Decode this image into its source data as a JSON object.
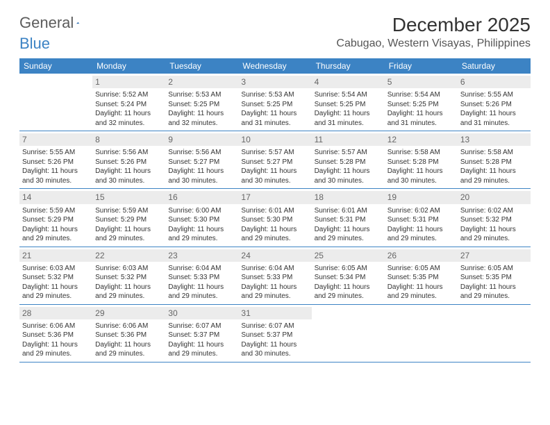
{
  "brand": {
    "text1": "General",
    "text2": "Blue"
  },
  "header": {
    "title": "December 2025",
    "location": "Cabugao, Western Visayas, Philippines"
  },
  "style": {
    "accent": "#3c83c4",
    "daynum_bg": "#ececec",
    "text_color": "#333333"
  },
  "weekdays": [
    "Sunday",
    "Monday",
    "Tuesday",
    "Wednesday",
    "Thursday",
    "Friday",
    "Saturday"
  ],
  "weeks": [
    [
      {
        "n": "",
        "empty": true
      },
      {
        "n": "1",
        "sunrise": "Sunrise: 5:52 AM",
        "sunset": "Sunset: 5:24 PM",
        "d1": "Daylight: 11 hours",
        "d2": "and 32 minutes."
      },
      {
        "n": "2",
        "sunrise": "Sunrise: 5:53 AM",
        "sunset": "Sunset: 5:25 PM",
        "d1": "Daylight: 11 hours",
        "d2": "and 32 minutes."
      },
      {
        "n": "3",
        "sunrise": "Sunrise: 5:53 AM",
        "sunset": "Sunset: 5:25 PM",
        "d1": "Daylight: 11 hours",
        "d2": "and 31 minutes."
      },
      {
        "n": "4",
        "sunrise": "Sunrise: 5:54 AM",
        "sunset": "Sunset: 5:25 PM",
        "d1": "Daylight: 11 hours",
        "d2": "and 31 minutes."
      },
      {
        "n": "5",
        "sunrise": "Sunrise: 5:54 AM",
        "sunset": "Sunset: 5:25 PM",
        "d1": "Daylight: 11 hours",
        "d2": "and 31 minutes."
      },
      {
        "n": "6",
        "sunrise": "Sunrise: 5:55 AM",
        "sunset": "Sunset: 5:26 PM",
        "d1": "Daylight: 11 hours",
        "d2": "and 31 minutes."
      }
    ],
    [
      {
        "n": "7",
        "sunrise": "Sunrise: 5:55 AM",
        "sunset": "Sunset: 5:26 PM",
        "d1": "Daylight: 11 hours",
        "d2": "and 30 minutes."
      },
      {
        "n": "8",
        "sunrise": "Sunrise: 5:56 AM",
        "sunset": "Sunset: 5:26 PM",
        "d1": "Daylight: 11 hours",
        "d2": "and 30 minutes."
      },
      {
        "n": "9",
        "sunrise": "Sunrise: 5:56 AM",
        "sunset": "Sunset: 5:27 PM",
        "d1": "Daylight: 11 hours",
        "d2": "and 30 minutes."
      },
      {
        "n": "10",
        "sunrise": "Sunrise: 5:57 AM",
        "sunset": "Sunset: 5:27 PM",
        "d1": "Daylight: 11 hours",
        "d2": "and 30 minutes."
      },
      {
        "n": "11",
        "sunrise": "Sunrise: 5:57 AM",
        "sunset": "Sunset: 5:28 PM",
        "d1": "Daylight: 11 hours",
        "d2": "and 30 minutes."
      },
      {
        "n": "12",
        "sunrise": "Sunrise: 5:58 AM",
        "sunset": "Sunset: 5:28 PM",
        "d1": "Daylight: 11 hours",
        "d2": "and 30 minutes."
      },
      {
        "n": "13",
        "sunrise": "Sunrise: 5:58 AM",
        "sunset": "Sunset: 5:28 PM",
        "d1": "Daylight: 11 hours",
        "d2": "and 29 minutes."
      }
    ],
    [
      {
        "n": "14",
        "sunrise": "Sunrise: 5:59 AM",
        "sunset": "Sunset: 5:29 PM",
        "d1": "Daylight: 11 hours",
        "d2": "and 29 minutes."
      },
      {
        "n": "15",
        "sunrise": "Sunrise: 5:59 AM",
        "sunset": "Sunset: 5:29 PM",
        "d1": "Daylight: 11 hours",
        "d2": "and 29 minutes."
      },
      {
        "n": "16",
        "sunrise": "Sunrise: 6:00 AM",
        "sunset": "Sunset: 5:30 PM",
        "d1": "Daylight: 11 hours",
        "d2": "and 29 minutes."
      },
      {
        "n": "17",
        "sunrise": "Sunrise: 6:01 AM",
        "sunset": "Sunset: 5:30 PM",
        "d1": "Daylight: 11 hours",
        "d2": "and 29 minutes."
      },
      {
        "n": "18",
        "sunrise": "Sunrise: 6:01 AM",
        "sunset": "Sunset: 5:31 PM",
        "d1": "Daylight: 11 hours",
        "d2": "and 29 minutes."
      },
      {
        "n": "19",
        "sunrise": "Sunrise: 6:02 AM",
        "sunset": "Sunset: 5:31 PM",
        "d1": "Daylight: 11 hours",
        "d2": "and 29 minutes."
      },
      {
        "n": "20",
        "sunrise": "Sunrise: 6:02 AM",
        "sunset": "Sunset: 5:32 PM",
        "d1": "Daylight: 11 hours",
        "d2": "and 29 minutes."
      }
    ],
    [
      {
        "n": "21",
        "sunrise": "Sunrise: 6:03 AM",
        "sunset": "Sunset: 5:32 PM",
        "d1": "Daylight: 11 hours",
        "d2": "and 29 minutes."
      },
      {
        "n": "22",
        "sunrise": "Sunrise: 6:03 AM",
        "sunset": "Sunset: 5:32 PM",
        "d1": "Daylight: 11 hours",
        "d2": "and 29 minutes."
      },
      {
        "n": "23",
        "sunrise": "Sunrise: 6:04 AM",
        "sunset": "Sunset: 5:33 PM",
        "d1": "Daylight: 11 hours",
        "d2": "and 29 minutes."
      },
      {
        "n": "24",
        "sunrise": "Sunrise: 6:04 AM",
        "sunset": "Sunset: 5:33 PM",
        "d1": "Daylight: 11 hours",
        "d2": "and 29 minutes."
      },
      {
        "n": "25",
        "sunrise": "Sunrise: 6:05 AM",
        "sunset": "Sunset: 5:34 PM",
        "d1": "Daylight: 11 hours",
        "d2": "and 29 minutes."
      },
      {
        "n": "26",
        "sunrise": "Sunrise: 6:05 AM",
        "sunset": "Sunset: 5:35 PM",
        "d1": "Daylight: 11 hours",
        "d2": "and 29 minutes."
      },
      {
        "n": "27",
        "sunrise": "Sunrise: 6:05 AM",
        "sunset": "Sunset: 5:35 PM",
        "d1": "Daylight: 11 hours",
        "d2": "and 29 minutes."
      }
    ],
    [
      {
        "n": "28",
        "sunrise": "Sunrise: 6:06 AM",
        "sunset": "Sunset: 5:36 PM",
        "d1": "Daylight: 11 hours",
        "d2": "and 29 minutes."
      },
      {
        "n": "29",
        "sunrise": "Sunrise: 6:06 AM",
        "sunset": "Sunset: 5:36 PM",
        "d1": "Daylight: 11 hours",
        "d2": "and 29 minutes."
      },
      {
        "n": "30",
        "sunrise": "Sunrise: 6:07 AM",
        "sunset": "Sunset: 5:37 PM",
        "d1": "Daylight: 11 hours",
        "d2": "and 29 minutes."
      },
      {
        "n": "31",
        "sunrise": "Sunrise: 6:07 AM",
        "sunset": "Sunset: 5:37 PM",
        "d1": "Daylight: 11 hours",
        "d2": "and 30 minutes."
      },
      {
        "n": "",
        "empty": true
      },
      {
        "n": "",
        "empty": true
      },
      {
        "n": "",
        "empty": true
      }
    ]
  ]
}
